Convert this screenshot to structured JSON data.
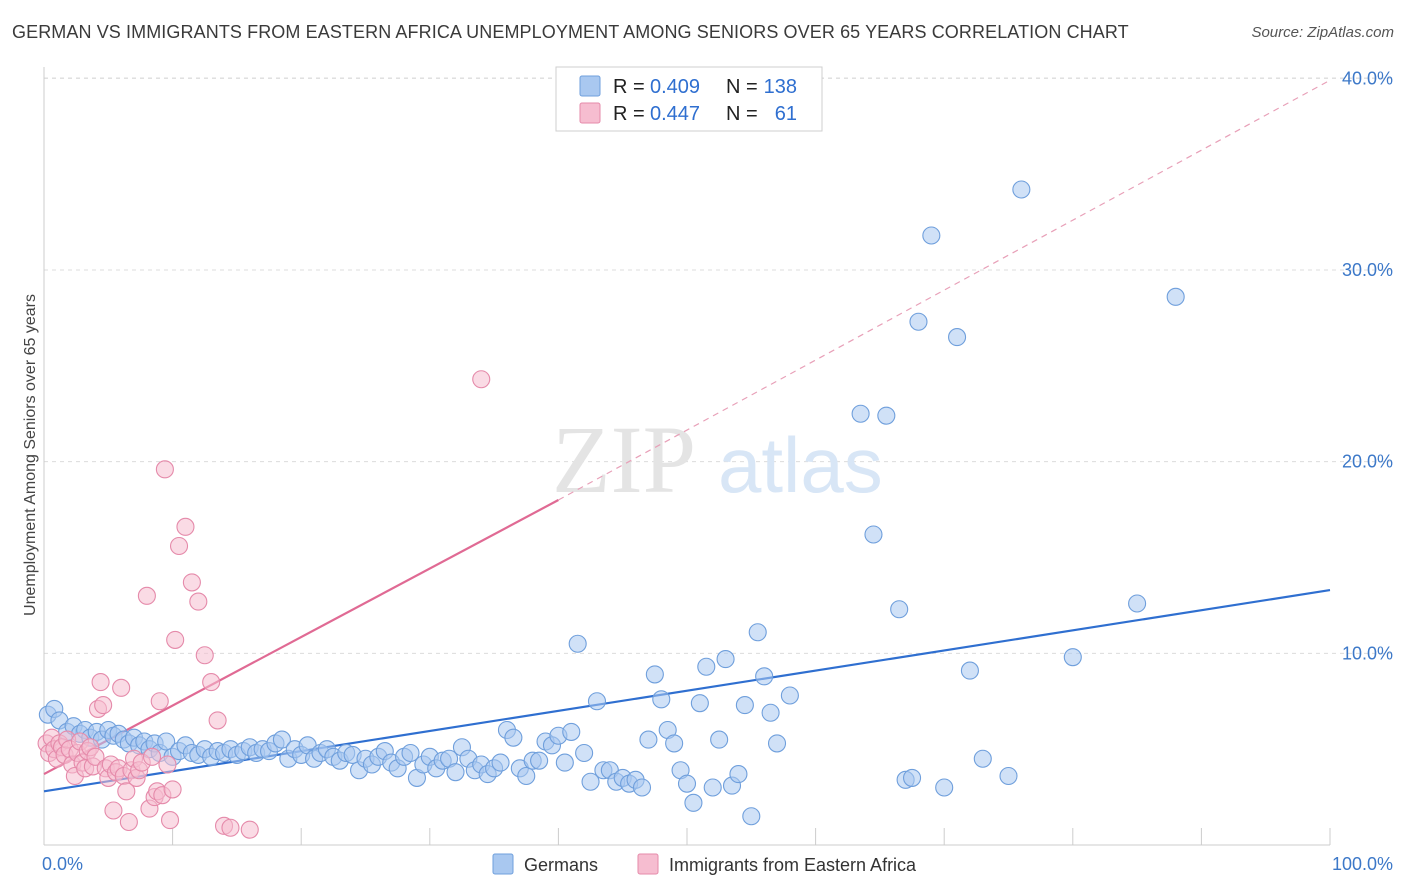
{
  "header": {
    "title": "GERMAN VS IMMIGRANTS FROM EASTERN AFRICA UNEMPLOYMENT AMONG SENIORS OVER 65 YEARS CORRELATION CHART",
    "source": "Source: ZipAtlas.com"
  },
  "watermark": {
    "zip": "ZIP",
    "atlas": "atlas"
  },
  "chart_data": {
    "type": "scatter",
    "title": "GERMAN VS IMMIGRANTS FROM EASTERN AFRICA UNEMPLOYMENT AMONG SENIORS OVER 65 YEARS CORRELATION CHART",
    "ylabel": "Unemployment Among Seniors over 65 years",
    "xlabel": "",
    "xlim": [
      0,
      100
    ],
    "ylim": [
      0,
      42
    ],
    "x_ticks": [
      "0.0%",
      "100.0%"
    ],
    "y_ticks": [
      {
        "value": 10,
        "label": "10.0%"
      },
      {
        "value": 20,
        "label": "20.0%"
      },
      {
        "value": 30,
        "label": "30.0%"
      },
      {
        "value": 40,
        "label": "40.0%"
      }
    ],
    "grid": true,
    "legend_position": "top-center",
    "stats": [
      {
        "r_label": "R = ",
        "r": "0.409",
        "n_label": "N = ",
        "n": "138",
        "color": "#a9c8f0",
        "border": "#6f9fdc"
      },
      {
        "r_label": "R = ",
        "r": "0.447",
        "n_label": "N = ",
        "n": "61",
        "color": "#f6bdd0",
        "border": "#e58aaa"
      }
    ],
    "series": [
      {
        "name": "Germans",
        "color": "#a9c8f0",
        "stroke": "#6f9fdc",
        "trend": {
          "x": [
            0,
            100
          ],
          "y": [
            2.8,
            13.3
          ],
          "color": "#2f6fd0",
          "dashed": false
        },
        "points": [
          [
            0.3,
            6.8
          ],
          [
            0.8,
            7.1
          ],
          [
            1.2,
            6.5
          ],
          [
            1.8,
            5.9
          ],
          [
            2.3,
            6.2
          ],
          [
            2.8,
            5.8
          ],
          [
            3.2,
            6.0
          ],
          [
            3.6,
            5.6
          ],
          [
            4.1,
            5.9
          ],
          [
            4.5,
            5.5
          ],
          [
            5.0,
            6.0
          ],
          [
            5.4,
            5.7
          ],
          [
            5.8,
            5.8
          ],
          [
            6.2,
            5.5
          ],
          [
            6.6,
            5.3
          ],
          [
            7.0,
            5.6
          ],
          [
            7.4,
            5.2
          ],
          [
            7.8,
            5.4
          ],
          [
            8.2,
            5.0
          ],
          [
            8.6,
            5.3
          ],
          [
            9.0,
            4.8
          ],
          [
            9.5,
            5.4
          ],
          [
            10.0,
            4.6
          ],
          [
            10.5,
            4.9
          ],
          [
            11.0,
            5.2
          ],
          [
            11.5,
            4.8
          ],
          [
            12.0,
            4.7
          ],
          [
            12.5,
            5.0
          ],
          [
            13.0,
            4.6
          ],
          [
            13.5,
            4.9
          ],
          [
            14.0,
            4.8
          ],
          [
            14.5,
            5.0
          ],
          [
            15.0,
            4.7
          ],
          [
            15.5,
            4.9
          ],
          [
            16.0,
            5.1
          ],
          [
            16.5,
            4.8
          ],
          [
            17.0,
            5.0
          ],
          [
            17.5,
            4.9
          ],
          [
            18.0,
            5.3
          ],
          [
            18.5,
            5.5
          ],
          [
            19.0,
            4.5
          ],
          [
            19.5,
            5.0
          ],
          [
            20.0,
            4.7
          ],
          [
            20.5,
            5.2
          ],
          [
            21.0,
            4.5
          ],
          [
            21.5,
            4.8
          ],
          [
            22.0,
            5.0
          ],
          [
            22.5,
            4.6
          ],
          [
            23.0,
            4.4
          ],
          [
            23.5,
            4.8
          ],
          [
            24.0,
            4.7
          ],
          [
            24.5,
            3.9
          ],
          [
            25.0,
            4.5
          ],
          [
            25.5,
            4.2
          ],
          [
            26.0,
            4.6
          ],
          [
            26.5,
            4.9
          ],
          [
            27.0,
            4.3
          ],
          [
            27.5,
            4.0
          ],
          [
            28.0,
            4.6
          ],
          [
            28.5,
            4.8
          ],
          [
            29.0,
            3.5
          ],
          [
            29.5,
            4.2
          ],
          [
            30.0,
            4.6
          ],
          [
            30.5,
            4.0
          ],
          [
            31.0,
            4.4
          ],
          [
            31.5,
            4.5
          ],
          [
            32.0,
            3.8
          ],
          [
            32.5,
            5.1
          ],
          [
            33.0,
            4.5
          ],
          [
            33.5,
            3.9
          ],
          [
            34.0,
            4.2
          ],
          [
            34.5,
            3.7
          ],
          [
            35.0,
            4.0
          ],
          [
            35.5,
            4.3
          ],
          [
            36.0,
            6.0
          ],
          [
            36.5,
            5.6
          ],
          [
            37.0,
            4.0
          ],
          [
            37.5,
            3.6
          ],
          [
            38.0,
            4.4
          ],
          [
            38.5,
            4.4
          ],
          [
            39.0,
            5.4
          ],
          [
            39.5,
            5.2
          ],
          [
            40.0,
            5.7
          ],
          [
            40.5,
            4.3
          ],
          [
            41.0,
            5.9
          ],
          [
            41.5,
            10.5
          ],
          [
            42.0,
            4.8
          ],
          [
            42.5,
            3.3
          ],
          [
            43.0,
            7.5
          ],
          [
            43.5,
            3.9
          ],
          [
            44.0,
            3.9
          ],
          [
            44.5,
            3.3
          ],
          [
            45.0,
            3.5
          ],
          [
            45.5,
            3.2
          ],
          [
            46.0,
            3.4
          ],
          [
            46.5,
            3.0
          ],
          [
            47.0,
            5.5
          ],
          [
            47.5,
            8.9
          ],
          [
            48.0,
            7.6
          ],
          [
            48.5,
            6.0
          ],
          [
            49.0,
            5.3
          ],
          [
            49.5,
            3.9
          ],
          [
            50.0,
            3.2
          ],
          [
            50.5,
            2.2
          ],
          [
            51.0,
            7.4
          ],
          [
            51.5,
            9.3
          ],
          [
            52.0,
            3.0
          ],
          [
            52.5,
            5.5
          ],
          [
            53.0,
            9.7
          ],
          [
            53.5,
            3.1
          ],
          [
            54.0,
            3.7
          ],
          [
            54.5,
            7.3
          ],
          [
            55.0,
            1.5
          ],
          [
            55.5,
            11.1
          ],
          [
            56.0,
            8.8
          ],
          [
            56.5,
            6.9
          ],
          [
            57.0,
            5.3
          ],
          [
            58.0,
            7.8
          ],
          [
            63.5,
            22.5
          ],
          [
            65.5,
            22.4
          ],
          [
            64.5,
            16.2
          ],
          [
            66.5,
            12.3
          ],
          [
            67.0,
            3.4
          ],
          [
            67.5,
            3.5
          ],
          [
            68.0,
            27.3
          ],
          [
            69.0,
            31.8
          ],
          [
            70.0,
            3.0
          ],
          [
            71.0,
            26.5
          ],
          [
            72.0,
            9.1
          ],
          [
            73.0,
            4.5
          ],
          [
            75.0,
            3.6
          ],
          [
            76.0,
            34.2
          ],
          [
            80.0,
            9.8
          ],
          [
            85.0,
            12.6
          ],
          [
            88.0,
            28.6
          ]
        ]
      },
      {
        "name": "Immigrants from Eastern Africa",
        "color": "#f6bdd0",
        "stroke": "#e58aaa",
        "trend": {
          "x": [
            0,
            40
          ],
          "y": [
            3.7,
            18.0
          ],
          "color": "#e06a94",
          "dashed": false
        },
        "trend_extension": {
          "x": [
            40,
            100
          ],
          "y": [
            18.0,
            39.9
          ],
          "color": "#e8a0b8",
          "dashed": true
        },
        "points": [
          [
            0.2,
            5.3
          ],
          [
            0.4,
            4.8
          ],
          [
            0.6,
            5.6
          ],
          [
            0.8,
            5.0
          ],
          [
            1.0,
            4.5
          ],
          [
            1.2,
            5.3
          ],
          [
            1.4,
            5.1
          ],
          [
            1.6,
            4.7
          ],
          [
            1.8,
            5.5
          ],
          [
            2.0,
            5.0
          ],
          [
            2.2,
            4.2
          ],
          [
            2.4,
            3.6
          ],
          [
            2.6,
            4.8
          ],
          [
            2.8,
            5.4
          ],
          [
            3.0,
            4.3
          ],
          [
            3.2,
            4.0
          ],
          [
            3.4,
            4.9
          ],
          [
            3.6,
            5.1
          ],
          [
            3.8,
            4.1
          ],
          [
            4.0,
            4.6
          ],
          [
            4.2,
            7.1
          ],
          [
            4.4,
            8.5
          ],
          [
            4.6,
            7.3
          ],
          [
            4.8,
            4.0
          ],
          [
            5.0,
            3.5
          ],
          [
            5.2,
            4.2
          ],
          [
            5.4,
            1.8
          ],
          [
            5.6,
            3.8
          ],
          [
            5.8,
            4.0
          ],
          [
            6.0,
            8.2
          ],
          [
            6.2,
            3.6
          ],
          [
            6.4,
            2.8
          ],
          [
            6.6,
            1.2
          ],
          [
            6.8,
            3.9
          ],
          [
            7.0,
            4.5
          ],
          [
            7.2,
            3.5
          ],
          [
            7.4,
            3.9
          ],
          [
            7.6,
            4.3
          ],
          [
            8.0,
            13.0
          ],
          [
            8.2,
            1.9
          ],
          [
            8.4,
            4.6
          ],
          [
            8.6,
            2.5
          ],
          [
            8.8,
            2.8
          ],
          [
            9.0,
            7.5
          ],
          [
            9.2,
            2.6
          ],
          [
            9.4,
            19.6
          ],
          [
            9.6,
            4.2
          ],
          [
            9.8,
            1.3
          ],
          [
            10.0,
            2.9
          ],
          [
            10.2,
            10.7
          ],
          [
            10.5,
            15.6
          ],
          [
            11.0,
            16.6
          ],
          [
            11.5,
            13.7
          ],
          [
            12.0,
            12.7
          ],
          [
            12.5,
            9.9
          ],
          [
            13.0,
            8.5
          ],
          [
            13.5,
            6.5
          ],
          [
            14.0,
            1.0
          ],
          [
            14.5,
            0.9
          ],
          [
            16.0,
            0.8
          ],
          [
            34.0,
            24.3
          ]
        ]
      }
    ]
  },
  "legend": {
    "items": [
      {
        "label": "Germans"
      },
      {
        "label": "Immigrants from Eastern Africa"
      }
    ]
  }
}
